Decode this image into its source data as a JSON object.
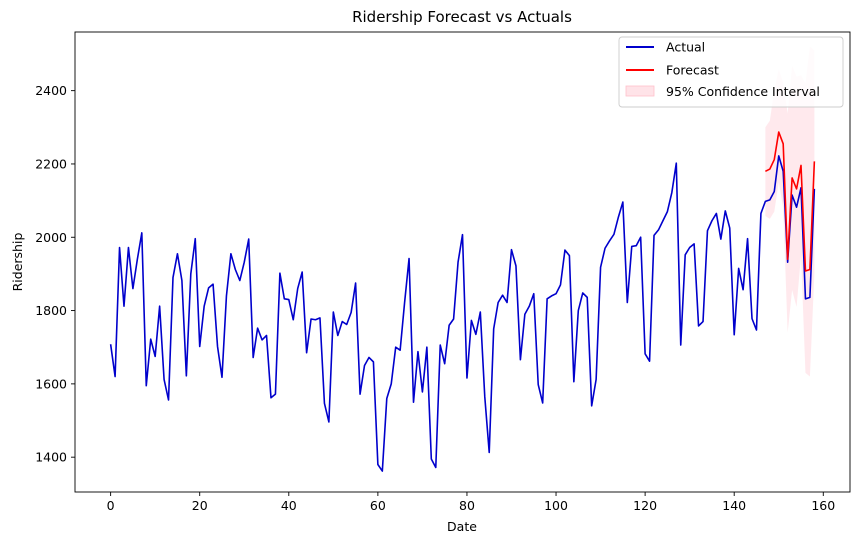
{
  "chart_data": {
    "type": "line",
    "title": "Ridership Forecast vs Actuals",
    "xlabel": "Date",
    "ylabel": "Ridership",
    "xlim": [
      -8,
      166
    ],
    "ylim": [
      1305,
      2560
    ],
    "x_ticks": [
      0,
      20,
      40,
      60,
      80,
      100,
      120,
      140,
      160
    ],
    "y_ticks": [
      1400,
      1600,
      1800,
      2000,
      2200,
      2400
    ],
    "grid": false,
    "legend_position": "top-right",
    "series": [
      {
        "name": "Actual",
        "color": "#0000cc",
        "x_start": 0,
        "values": [
          1708,
          1620,
          1972,
          1812,
          1972,
          1860,
          1940,
          2012,
          1595,
          1722,
          1675,
          1812,
          1612,
          1556,
          1890,
          1955,
          1882,
          1622,
          1900,
          1996,
          1702,
          1812,
          1862,
          1872,
          1702,
          1618,
          1840,
          1955,
          1912,
          1882,
          1932,
          1995,
          1672,
          1752,
          1720,
          1732,
          1562,
          1572,
          1902,
          1832,
          1830,
          1775,
          1860,
          1905,
          1685,
          1777,
          1775,
          1780,
          1547,
          1496,
          1796,
          1732,
          1770,
          1762,
          1795,
          1875,
          1572,
          1650,
          1672,
          1660,
          1380,
          1362,
          1560,
          1600,
          1700,
          1692,
          1822,
          1942,
          1550,
          1688,
          1578,
          1700,
          1395,
          1372,
          1706,
          1655,
          1760,
          1777,
          1932,
          2007,
          1616,
          1773,
          1735,
          1796,
          1565,
          1413,
          1750,
          1822,
          1842,
          1822,
          1966,
          1922,
          1666,
          1790,
          1812,
          1846,
          1598,
          1548,
          1832,
          1840,
          1846,
          1870,
          1965,
          1950,
          1606,
          1800,
          1848,
          1836,
          1540,
          1612,
          1918,
          1970,
          1990,
          2008,
          2055,
          2096,
          1822,
          1975,
          1977,
          2000,
          1682,
          1662,
          2005,
          2020,
          2045,
          2070,
          2122,
          2202,
          1706,
          1952,
          1972,
          1982,
          1758,
          1770,
          2018,
          2045,
          2065,
          1995,
          2072,
          2025,
          1734,
          1915,
          1857,
          1996,
          1778,
          1747,
          2065,
          2098,
          2102,
          2125,
          2222,
          2180,
          1932,
          2115,
          2082,
          2135,
          1832,
          1836,
          2132
        ]
      },
      {
        "name": "Forecast",
        "color": "#ff0000",
        "x_start": 147,
        "values": [
          2180,
          2186,
          2212,
          2287,
          2255,
          1940,
          2162,
          2132,
          2196,
          1908,
          1912,
          2207
        ]
      }
    ],
    "confidence_interval": {
      "name": "95% Confidence Interval",
      "color": "#ffc0cb",
      "x_start": 147,
      "upper": [
        2300,
        2318,
        2402,
        2458,
        2422,
        2338,
        2468,
        2438,
        2442,
        2420,
        2520,
        2510
      ],
      "lower": [
        2058,
        2050,
        2070,
        2150,
        2080,
        1740,
        1856,
        1810,
        1950,
        1630,
        1620,
        1900
      ]
    }
  }
}
